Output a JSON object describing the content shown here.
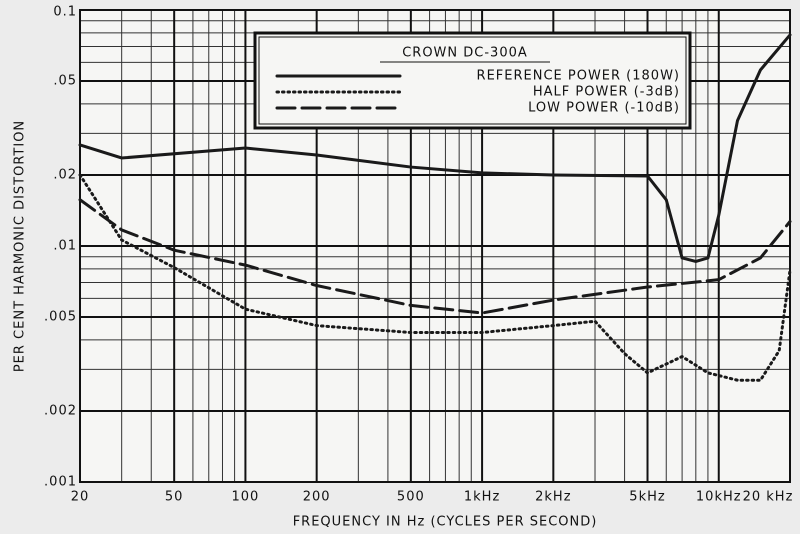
{
  "chart_data": {
    "type": "line",
    "legend_title": "CROWN DC-300A",
    "xlabel": "FREQUENCY IN Hz (CYCLES PER SECOND)",
    "ylabel": "PER CENT HARMONIC DISTORTION",
    "xscale": "log",
    "yscale": "log",
    "grid": true,
    "xlim": [
      20,
      20000
    ],
    "ylim": [
      0.001,
      0.1
    ],
    "xticks": [
      20,
      50,
      100,
      200,
      500,
      {
        "value": 1000,
        "label": "1kHz"
      },
      {
        "value": 2000,
        "label": "2kHz"
      },
      {
        "value": 5000,
        "label": "5kHz"
      },
      {
        "value": 10000,
        "label": "10kHz"
      },
      {
        "value": 20000,
        "label": "20 kHz"
      }
    ],
    "yticks": [
      {
        "value": 0.001,
        "label": ".001"
      },
      {
        "value": 0.002,
        "label": ".002"
      },
      {
        "value": 0.005,
        "label": ".005"
      },
      {
        "value": 0.01,
        "label": ".01"
      },
      {
        "value": 0.02,
        "label": ".02"
      },
      {
        "value": 0.05,
        "label": ".05"
      },
      0.1
    ],
    "minor_xticks": [
      30,
      40,
      60,
      70,
      80,
      90,
      300,
      400,
      600,
      700,
      800,
      900,
      3000,
      4000,
      6000,
      7000,
      8000,
      9000
    ],
    "minor_yticks": [
      0.003,
      0.004,
      0.006,
      0.007,
      0.008,
      0.009,
      0.03,
      0.04,
      0.06,
      0.07,
      0.08,
      0.09
    ],
    "series": [
      {
        "name": "REFERENCE POWER (180W)",
        "color": "#1a1a1a",
        "line_style": "solid",
        "x": [
          20,
          30,
          100,
          200,
          500,
          1000,
          2000,
          5000,
          6000,
          7000,
          8000,
          9000,
          10000,
          12000,
          15000,
          20000
        ],
        "values": [
          0.0268,
          0.0236,
          0.026,
          0.0243,
          0.0216,
          0.0204,
          0.02,
          0.0198,
          0.0157,
          0.0089,
          0.0086,
          0.0089,
          0.0135,
          0.034,
          0.0557,
          0.0784
        ]
      },
      {
        "name": "HALF POWER (-3dB)",
        "color": "#1a1a1a",
        "line_style": "dotted",
        "x": [
          20,
          30,
          50,
          100,
          200,
          500,
          1000,
          2000,
          3000,
          4000,
          5000,
          7000,
          9000,
          12000,
          15000,
          18000,
          20000
        ],
        "values": [
          0.02,
          0.0106,
          0.0081,
          0.0054,
          0.0046,
          0.0043,
          0.0043,
          0.0046,
          0.0048,
          0.0035,
          0.0029,
          0.0034,
          0.0029,
          0.0027,
          0.0027,
          0.0036,
          0.0079
        ]
      },
      {
        "name": "LOW POWER (-10dB)",
        "color": "#1a1a1a",
        "line_style": "dashed",
        "x": [
          20,
          30,
          50,
          100,
          200,
          500,
          1000,
          2000,
          5000,
          10000,
          15000,
          20000
        ],
        "values": [
          0.0157,
          0.0117,
          0.0096,
          0.0083,
          0.0068,
          0.0056,
          0.0052,
          0.0059,
          0.0067,
          0.0072,
          0.0089,
          0.0127
        ]
      }
    ]
  }
}
